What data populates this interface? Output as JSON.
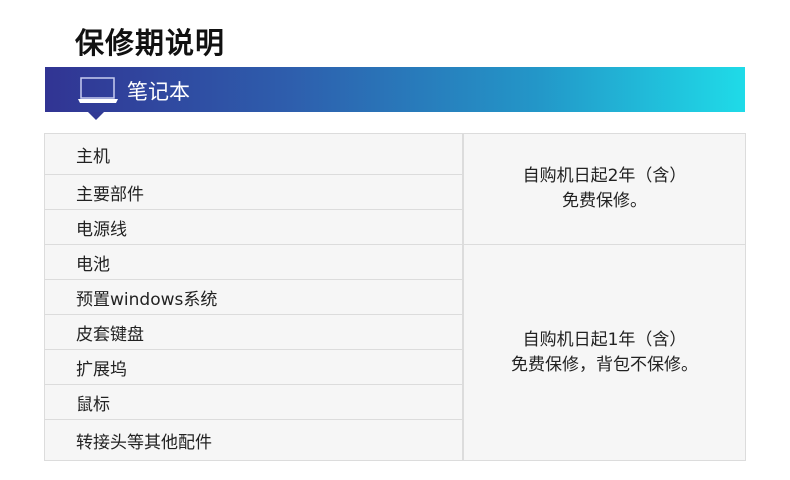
{
  "page_title": "保修期说明",
  "section": {
    "title": "笔记本",
    "icon": "laptop-icon",
    "gradient": [
      "#313493",
      "#1fdbe8"
    ]
  },
  "groups": [
    {
      "items": [
        "主机",
        "主要部件",
        "电源线"
      ],
      "policy": [
        "自购机日起2年（含）",
        "免费保修。"
      ]
    },
    {
      "items": [
        "电池",
        "预置windows系统",
        "皮套键盘",
        "扩展坞",
        "鼠标",
        "转接头等其他配件"
      ],
      "policy": [
        "自购机日起1年（含）",
        "免费保修，背包不保修。"
      ]
    }
  ]
}
